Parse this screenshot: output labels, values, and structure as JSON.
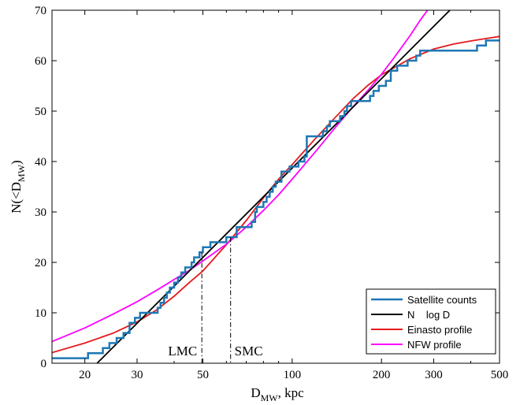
{
  "chart_data": {
    "type": "line",
    "xlabel_main": "D",
    "xlabel_sub": "MW",
    "xlabel_rest": ", kpc",
    "ylabel_main": "N(<D",
    "ylabel_sub": "MW",
    "ylabel_end": ")",
    "x_scale": "log",
    "xlim": [
      15.5,
      500
    ],
    "ylim": [
      0,
      70
    ],
    "xticks": [
      20,
      30,
      50,
      100,
      200,
      300,
      500
    ],
    "xtick_labels": [
      "20",
      "30",
      "50",
      "100",
      "200",
      "300",
      "500"
    ],
    "yticks": [
      0,
      10,
      20,
      30,
      40,
      50,
      60,
      70
    ],
    "ytick_labels": [
      "0",
      "10",
      "20",
      "30",
      "40",
      "50",
      "60",
      "70"
    ],
    "grid": false,
    "legend_position": "bottom-right",
    "annotations": [
      {
        "label": "LMC",
        "x": 49.6
      },
      {
        "label": "SMC",
        "x": 62.0
      }
    ],
    "series": [
      {
        "name": "Satellite counts",
        "color": "#1f77b4",
        "kind": "step",
        "x": [
          15.5,
          20.5,
          23.0,
          24.2,
          25.6,
          27.0,
          28.3,
          29.5,
          30.7,
          35.2,
          36.0,
          37.0,
          37.8,
          38.7,
          40.0,
          41.2,
          42.3,
          43.6,
          44.7,
          45.8,
          46.7,
          47.8,
          48.7,
          50.0,
          51.5,
          53.0,
          55.0,
          60.0,
          65.0,
          70.0,
          73.0,
          74.0,
          75.0,
          76.0,
          80.0,
          82.0,
          84.0,
          86.0,
          88.0,
          92.0,
          98.0,
          105.0,
          110.0,
          112.0,
          125.0,
          127.0,
          131.0,
          134.0,
          145.0,
          150.0,
          153.0,
          158.0,
          173.0,
          183.0,
          188.0,
          196.0,
          207.0,
          215.0,
          226.0,
          245.0,
          262.0,
          270.0,
          400.0,
          420.0,
          450.0,
          500.0
        ],
        "y": [
          1,
          2,
          3,
          4,
          5,
          6,
          8,
          9,
          10,
          11,
          12,
          13,
          14,
          15,
          16,
          17,
          18,
          19,
          19,
          20,
          21,
          21,
          22,
          23,
          23,
          24,
          24,
          25,
          27,
          27,
          28,
          28,
          30,
          31,
          32,
          33,
          34,
          35,
          36,
          38,
          39,
          40,
          41,
          45,
          45,
          46,
          47,
          48,
          49,
          50,
          51,
          52,
          52,
          53,
          54,
          55,
          56,
          58,
          59,
          60,
          61,
          62,
          62,
          63,
          64,
          64
        ]
      },
      {
        "name": "N    log D",
        "color": "#000000",
        "kind": "log-linear",
        "points": [
          [
            22.0,
            0
          ],
          [
            340.0,
            70
          ]
        ]
      },
      {
        "name": "Einasto profile",
        "color": "#e41a1c",
        "kind": "curve",
        "x": [
          15.5,
          20,
          25,
          30,
          35,
          40,
          45,
          50,
          60,
          70,
          80,
          90,
          100,
          120,
          140,
          160,
          180,
          200,
          250,
          300,
          350,
          400,
          450,
          500
        ],
        "y": [
          2.1,
          4.0,
          6.0,
          8.2,
          10.6,
          13.3,
          16.0,
          18.3,
          23.5,
          28.3,
          32.8,
          36.5,
          39.4,
          44.6,
          48.8,
          52.4,
          55.1,
          57.2,
          60.4,
          62.3,
          63.3,
          63.9,
          64.4,
          64.8
        ]
      },
      {
        "name": "NFW profile",
        "color": "#ff00ff",
        "kind": "curve",
        "x": [
          15.5,
          20,
          25,
          30,
          35,
          40,
          45,
          50,
          60,
          70,
          80,
          90,
          100,
          120,
          140,
          160,
          180,
          200,
          220,
          250,
          270,
          290
        ],
        "y": [
          4.3,
          7.0,
          9.8,
          12.2,
          14.5,
          16.6,
          18.4,
          20.3,
          23.6,
          27.0,
          30.3,
          33.4,
          36.5,
          42.0,
          46.8,
          50.8,
          54.1,
          57.3,
          60.5,
          65.0,
          68.0,
          70.5
        ]
      }
    ]
  }
}
